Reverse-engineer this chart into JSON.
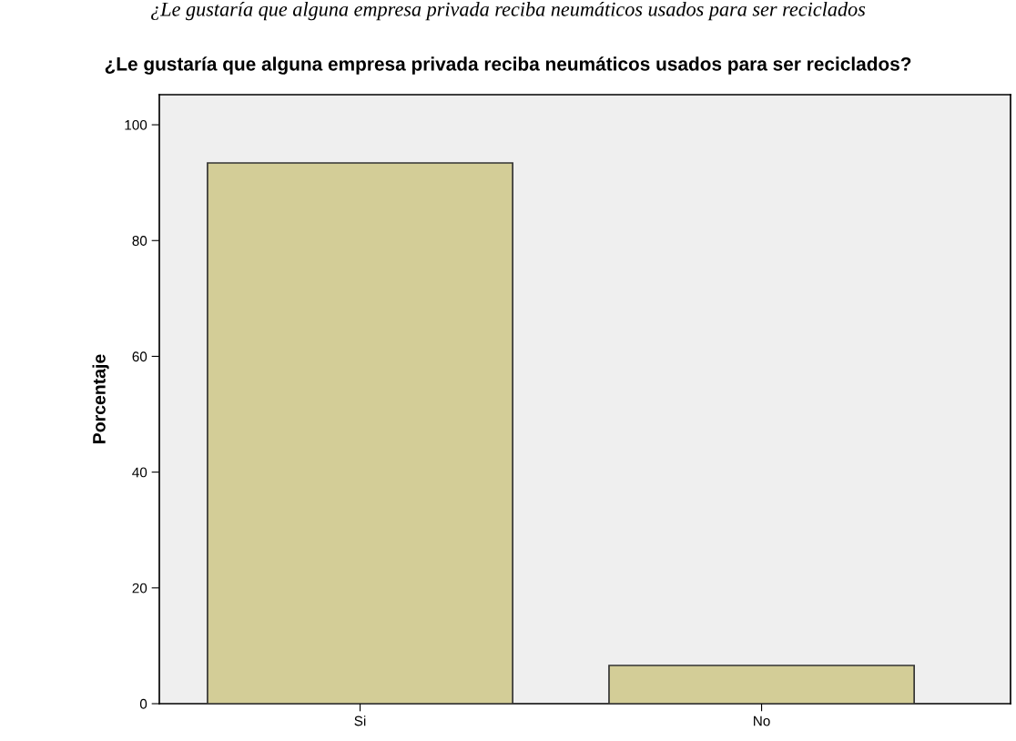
{
  "chart_data": {
    "type": "bar",
    "title": "¿Le gustaría que alguna empresa privada reciba neumáticos usados para ser reciclados?",
    "annotations": [
      "¿Le gustaría que alguna empresa privada reciba neumáticos usados para ser reciclados"
    ],
    "ylabel": "Porcentaje",
    "categories": [
      "Si",
      "No"
    ],
    "values": [
      93.4,
      6.6
    ],
    "color": "#d3cd97",
    "ylim": [
      0,
      105.2
    ],
    "yticks": [
      0,
      20,
      40,
      60,
      80,
      100
    ],
    "grid": false,
    "legend": false
  }
}
